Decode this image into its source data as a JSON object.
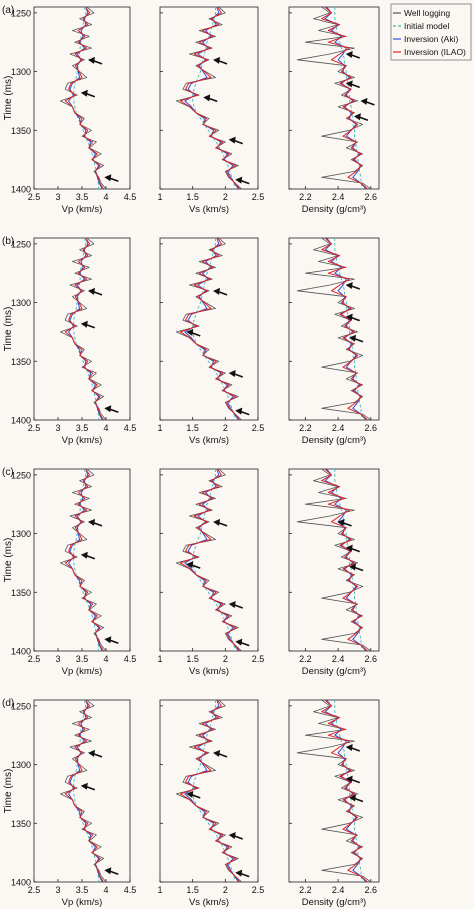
{
  "figure": {
    "background": "#fbf8f4",
    "colors": {
      "well": "#555555",
      "initial": "#3fb8b8",
      "aki": "#3050d8",
      "ilao": "#e02020",
      "arrow": "#111111"
    },
    "legend": [
      "Well logging",
      "Initial model",
      "Inversion (Aki)",
      "Inversion (ILAO)"
    ],
    "time_axis": {
      "label": "Time (ms)",
      "range": [
        1245,
        1400
      ],
      "ticks": [
        1250,
        1300,
        1350,
        1400
      ]
    }
  },
  "chart_data": [
    {
      "panel": "(a)",
      "type": "line",
      "subplots": [
        {
          "xlabel": "Vp (km/s)",
          "xlim": [
            2.5,
            4.5
          ],
          "xticks": [
            "2.5",
            "3",
            "3.5",
            "4",
            "4.5"
          ],
          "series_key": "vp",
          "arrows_time": [
            1290,
            1318,
            1390
          ]
        },
        {
          "xlabel": "Vs (km/s)",
          "xlim": [
            1,
            2.5
          ],
          "xticks": [
            "1",
            "1.5",
            "2",
            "2.5"
          ],
          "series_key": "vs",
          "arrows_time": [
            1290,
            1322,
            1358,
            1392
          ]
        },
        {
          "xlabel": "Density (g/cm³)",
          "xlim": [
            2.1,
            2.65
          ],
          "xticks": [
            "2.2",
            "2.4",
            "2.6"
          ],
          "series_key": "rho",
          "arrows_time": [
            1285,
            1310,
            1325,
            1338
          ]
        }
      ]
    },
    {
      "panel": "(b)",
      "type": "line",
      "subplots": [
        {
          "xlabel": "Vp (km/s)",
          "xlim": [
            2.5,
            4.5
          ],
          "xticks": [
            "2.5",
            "3",
            "3.5",
            "4",
            "4.5"
          ],
          "series_key": "vp",
          "arrows_time": [
            1290,
            1318,
            1390
          ]
        },
        {
          "xlabel": "Vs (km/s)",
          "xlim": [
            1,
            2.5
          ],
          "xticks": [
            "1",
            "1.5",
            "2",
            "2.5"
          ],
          "series_key": "vs",
          "arrows_time": [
            1290,
            1325,
            1360,
            1392
          ]
        },
        {
          "xlabel": "Density (g/cm³)",
          "xlim": [
            2.1,
            2.65
          ],
          "xticks": [
            "2.2",
            "2.4",
            "2.6"
          ],
          "series_key": "rho",
          "arrows_time": [
            1285,
            1312,
            1330
          ]
        }
      ]
    },
    {
      "panel": "(c)",
      "type": "line",
      "subplots": [
        {
          "xlabel": "Vp (km/s)",
          "xlim": [
            2.5,
            4.5
          ],
          "xticks": [
            "2.5",
            "3",
            "3.5",
            "4",
            "4.5"
          ],
          "series_key": "vp",
          "arrows_time": [
            1290,
            1318,
            1390
          ]
        },
        {
          "xlabel": "Vs (km/s)",
          "xlim": [
            1,
            2.5
          ],
          "xticks": [
            "1",
            "1.5",
            "2",
            "2.5"
          ],
          "series_key": "vs",
          "arrows_time": [
            1290,
            1326,
            1360,
            1392
          ]
        },
        {
          "xlabel": "Density (g/cm³)",
          "xlim": [
            2.1,
            2.65
          ],
          "xticks": [
            "2.2",
            "2.4",
            "2.6"
          ],
          "series_key": "rho",
          "arrows_time": [
            1290,
            1312,
            1328
          ]
        }
      ]
    },
    {
      "panel": "(d)",
      "type": "line",
      "subplots": [
        {
          "xlabel": "Vp (km/s)",
          "xlim": [
            2.5,
            4.5
          ],
          "xticks": [
            "2.5",
            "3",
            "3.5",
            "4",
            "4.5"
          ],
          "series_key": "vp",
          "arrows_time": [
            1290,
            1318,
            1390
          ]
        },
        {
          "xlabel": "Vs (km/s)",
          "xlim": [
            1,
            2.5
          ],
          "xticks": [
            "1",
            "1.5",
            "2",
            "2.5"
          ],
          "series_key": "vs",
          "arrows_time": [
            1290,
            1325,
            1360,
            1392
          ]
        },
        {
          "xlabel": "Density (g/cm³)",
          "xlim": [
            2.1,
            2.65
          ],
          "xticks": [
            "2.2",
            "2.4",
            "2.6"
          ],
          "series_key": "rho",
          "arrows_time": [
            1285,
            1312,
            1328
          ]
        }
      ]
    }
  ],
  "curves": {
    "time": [
      1245,
      1250,
      1255,
      1260,
      1265,
      1270,
      1275,
      1280,
      1285,
      1290,
      1295,
      1300,
      1305,
      1310,
      1315,
      1320,
      1325,
      1330,
      1335,
      1340,
      1345,
      1350,
      1355,
      1360,
      1365,
      1370,
      1375,
      1380,
      1385,
      1390,
      1395,
      1400
    ],
    "vp": {
      "well": [
        3.6,
        3.75,
        3.45,
        3.7,
        3.3,
        3.65,
        3.35,
        3.7,
        3.25,
        3.55,
        3.3,
        3.45,
        3.6,
        3.2,
        3.15,
        3.4,
        3.05,
        3.3,
        3.35,
        3.55,
        3.45,
        3.7,
        3.5,
        3.8,
        3.65,
        3.9,
        3.7,
        3.95,
        3.75,
        3.85,
        3.9,
        4.0
      ],
      "initial": [
        3.55,
        3.58,
        3.55,
        3.52,
        3.5,
        3.48,
        3.47,
        3.46,
        3.45,
        3.45,
        3.42,
        3.4,
        3.38,
        3.35,
        3.33,
        3.32,
        3.33,
        3.35,
        3.38,
        3.42,
        3.47,
        3.52,
        3.57,
        3.62,
        3.67,
        3.71,
        3.74,
        3.77,
        3.8,
        3.82,
        3.84,
        3.85
      ],
      "aki": [
        3.58,
        3.62,
        3.55,
        3.58,
        3.48,
        3.52,
        3.45,
        3.55,
        3.4,
        3.48,
        3.4,
        3.42,
        3.45,
        3.3,
        3.25,
        3.32,
        3.22,
        3.3,
        3.35,
        3.45,
        3.47,
        3.58,
        3.55,
        3.68,
        3.65,
        3.78,
        3.72,
        3.85,
        3.78,
        3.82,
        3.86,
        3.92
      ],
      "ilao": [
        3.57,
        3.66,
        3.52,
        3.62,
        3.42,
        3.56,
        3.42,
        3.6,
        3.35,
        3.5,
        3.36,
        3.44,
        3.5,
        3.27,
        3.22,
        3.35,
        3.15,
        3.3,
        3.35,
        3.5,
        3.46,
        3.62,
        3.53,
        3.72,
        3.64,
        3.82,
        3.71,
        3.88,
        3.77,
        3.84,
        3.87,
        3.95
      ]
    },
    "vs": {
      "well": [
        1.9,
        2.0,
        1.75,
        1.95,
        1.6,
        1.85,
        1.55,
        1.8,
        1.45,
        1.75,
        1.55,
        1.7,
        1.85,
        1.4,
        1.35,
        1.6,
        1.25,
        1.45,
        1.55,
        1.75,
        1.65,
        1.9,
        1.75,
        2.0,
        1.85,
        2.1,
        1.95,
        2.2,
        2.0,
        2.05,
        2.15,
        2.25
      ],
      "initial": [
        1.85,
        1.85,
        1.83,
        1.8,
        1.78,
        1.75,
        1.72,
        1.7,
        1.68,
        1.66,
        1.64,
        1.62,
        1.58,
        1.55,
        1.52,
        1.5,
        1.5,
        1.52,
        1.56,
        1.62,
        1.68,
        1.74,
        1.8,
        1.86,
        1.91,
        1.96,
        2.0,
        2.04,
        2.07,
        2.1,
        2.13,
        2.15
      ],
      "aki": [
        1.87,
        1.9,
        1.8,
        1.86,
        1.7,
        1.78,
        1.65,
        1.74,
        1.58,
        1.7,
        1.6,
        1.66,
        1.72,
        1.48,
        1.43,
        1.54,
        1.38,
        1.48,
        1.55,
        1.68,
        1.67,
        1.82,
        1.78,
        1.93,
        1.88,
        2.03,
        1.98,
        2.12,
        2.04,
        2.08,
        2.14,
        2.2
      ],
      "ilao": [
        1.88,
        1.94,
        1.78,
        1.9,
        1.65,
        1.81,
        1.6,
        1.77,
        1.52,
        1.72,
        1.57,
        1.68,
        1.78,
        1.44,
        1.39,
        1.57,
        1.31,
        1.46,
        1.55,
        1.71,
        1.66,
        1.86,
        1.76,
        1.96,
        1.86,
        2.06,
        1.96,
        2.16,
        2.02,
        2.06,
        2.15,
        2.22
      ]
    },
    "rho": {
      "well": [
        2.3,
        2.35,
        2.25,
        2.4,
        2.28,
        2.45,
        2.2,
        2.5,
        2.35,
        2.15,
        2.45,
        2.4,
        2.5,
        2.38,
        2.48,
        2.42,
        2.52,
        2.4,
        2.5,
        2.45,
        2.55,
        2.47,
        2.3,
        2.52,
        2.45,
        2.55,
        2.48,
        2.55,
        2.5,
        2.3,
        2.55,
        2.6
      ],
      "initial": [
        2.38,
        2.38,
        2.38,
        2.39,
        2.39,
        2.4,
        2.41,
        2.42,
        2.43,
        2.44,
        2.44,
        2.45,
        2.45,
        2.46,
        2.46,
        2.47,
        2.47,
        2.48,
        2.48,
        2.49,
        2.49,
        2.5,
        2.5,
        2.51,
        2.51,
        2.52,
        2.52,
        2.53,
        2.53,
        2.54,
        2.54,
        2.55
      ],
      "aki": [
        2.33,
        2.36,
        2.32,
        2.4,
        2.36,
        2.42,
        2.38,
        2.45,
        2.43,
        2.4,
        2.44,
        2.43,
        2.47,
        2.42,
        2.47,
        2.45,
        2.49,
        2.44,
        2.48,
        2.47,
        2.51,
        2.48,
        2.45,
        2.51,
        2.49,
        2.53,
        2.5,
        2.54,
        2.52,
        2.49,
        2.54,
        2.57
      ],
      "ilao": [
        2.32,
        2.36,
        2.3,
        2.41,
        2.34,
        2.44,
        2.34,
        2.47,
        2.41,
        2.36,
        2.45,
        2.42,
        2.48,
        2.41,
        2.48,
        2.44,
        2.5,
        2.43,
        2.49,
        2.46,
        2.52,
        2.48,
        2.43,
        2.51,
        2.48,
        2.54,
        2.49,
        2.54,
        2.51,
        2.46,
        2.54,
        2.58
      ]
    }
  }
}
